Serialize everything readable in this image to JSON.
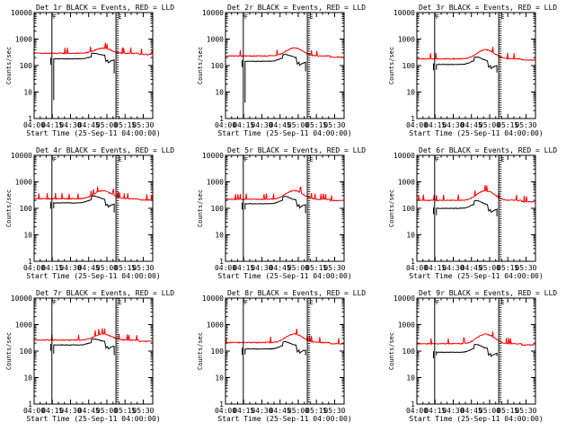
{
  "chart_data": [
    {
      "type": "line",
      "title": "Det 1r BLACK = Events, RED = LLD",
      "xlabel": "Start Time (25-Sep-11 04:00:00)",
      "ylabel": "Counts/sec",
      "yscale": "log",
      "ylim": [
        1,
        10000
      ],
      "xlim": [
        0,
        100
      ],
      "x_ticks": [
        "04:00",
        "04:15",
        "04:30",
        "04:45",
        "05:00",
        "05:15",
        "05:30"
      ],
      "y_ticks": [
        "1",
        "10",
        "100",
        "1000",
        "10000"
      ],
      "events_base": 180,
      "lld_base": 290,
      "bump_amp": 1.55,
      "drop_left": 5,
      "drop_right": 50,
      "vertical_lines": [
        {
          "x": 15,
          "style": "solid",
          "flag": "F"
        },
        {
          "x": 69,
          "style": "solid",
          "flag": ""
        },
        {
          "x": 70,
          "style": "dotted",
          "flag": "E"
        },
        {
          "x": 71,
          "style": "dotted",
          "flag": ""
        }
      ],
      "series": [
        {
          "name": "Events",
          "color": "#000000"
        },
        {
          "name": "LLD",
          "color": "#ff0000"
        }
      ]
    },
    {
      "type": "line",
      "title": "Det 2r BLACK = Events, RED = LLD",
      "xlabel": "Start Time (25-Sep-11 04:00:00)",
      "ylabel": "Counts/sec",
      "yscale": "log",
      "ylim": [
        1,
        10000
      ],
      "xlim": [
        0,
        100
      ],
      "x_ticks": [
        "04:00",
        "04:15",
        "04:30",
        "04:45",
        "05:00",
        "05:15",
        "05:30"
      ],
      "y_ticks": [
        "1",
        "10",
        "100",
        "1000",
        "10000"
      ],
      "events_base": 145,
      "lld_base": 230,
      "bump_amp": 2.0,
      "drop_left": 4,
      "drop_right": 60,
      "vertical_lines": [
        {
          "x": 15,
          "style": "solid",
          "flag": "F"
        },
        {
          "x": 69,
          "style": "solid",
          "flag": ""
        },
        {
          "x": 70,
          "style": "dotted",
          "flag": "E"
        },
        {
          "x": 71,
          "style": "dotted",
          "flag": ""
        }
      ],
      "series": [
        {
          "name": "Events",
          "color": "#000000"
        },
        {
          "name": "LLD",
          "color": "#ff0000"
        }
      ]
    },
    {
      "type": "line",
      "title": "Det 3r BLACK = Events, RED = LLD",
      "xlabel": "Start Time (25-Sep-11 04:00:00)",
      "ylabel": "Counts/sec",
      "yscale": "log",
      "ylim": [
        1,
        10000
      ],
      "xlim": [
        0,
        100
      ],
      "x_ticks": [
        "04:00",
        "04:15",
        "04:30",
        "04:45",
        "05:00",
        "05:15",
        "05:30"
      ],
      "y_ticks": [
        "1",
        "10",
        "100",
        "1000",
        "10000"
      ],
      "events_base": 110,
      "lld_base": 180,
      "bump_amp": 2.2,
      "drop_left": 70,
      "drop_right": 55,
      "vertical_lines": [
        {
          "x": 15,
          "style": "solid",
          "flag": "F"
        },
        {
          "x": 69,
          "style": "solid",
          "flag": ""
        },
        {
          "x": 70,
          "style": "dotted",
          "flag": "E"
        },
        {
          "x": 71,
          "style": "dotted",
          "flag": ""
        }
      ],
      "series": [
        {
          "name": "Events",
          "color": "#000000"
        },
        {
          "name": "LLD",
          "color": "#ff0000"
        }
      ]
    },
    {
      "type": "line",
      "title": "Det 4r BLACK = Events, RED = LLD",
      "xlabel": "Start Time (25-Sep-11 04:00:00)",
      "ylabel": "Counts/sec",
      "yscale": "log",
      "ylim": [
        1,
        10000
      ],
      "xlim": [
        0,
        100
      ],
      "x_ticks": [
        "04:00",
        "04:15",
        "04:30",
        "04:45",
        "05:00",
        "05:15",
        "05:30"
      ],
      "y_ticks": [
        "1",
        "10",
        "100",
        "1000",
        "10000"
      ],
      "events_base": 160,
      "lld_base": 230,
      "bump_amp": 2.0,
      "drop_left": 100,
      "drop_right": 70,
      "vertical_lines": [
        {
          "x": 15,
          "style": "solid",
          "flag": "F"
        },
        {
          "x": 69,
          "style": "solid",
          "flag": ""
        },
        {
          "x": 70,
          "style": "dotted",
          "flag": "E"
        },
        {
          "x": 71,
          "style": "dotted",
          "flag": ""
        }
      ],
      "series": [
        {
          "name": "Events",
          "color": "#000000"
        },
        {
          "name": "LLD",
          "color": "#ff0000"
        }
      ]
    },
    {
      "type": "line",
      "title": "Det 5r BLACK = Events, RED = LLD",
      "xlabel": "Start Time (25-Sep-11 04:00:00)",
      "ylabel": "Counts/sec",
      "yscale": "log",
      "ylim": [
        1,
        10000
      ],
      "xlim": [
        0,
        100
      ],
      "x_ticks": [
        "04:00",
        "04:15",
        "04:30",
        "04:45",
        "05:00",
        "05:15",
        "05:30"
      ],
      "y_ticks": [
        "1",
        "10",
        "100",
        "1000",
        "10000"
      ],
      "events_base": 150,
      "lld_base": 220,
      "bump_amp": 2.1,
      "drop_left": 90,
      "drop_right": 65,
      "vertical_lines": [
        {
          "x": 15,
          "style": "solid",
          "flag": "F"
        },
        {
          "x": 69,
          "style": "solid",
          "flag": ""
        },
        {
          "x": 70,
          "style": "dotted",
          "flag": "E"
        },
        {
          "x": 71,
          "style": "dotted",
          "flag": ""
        }
      ],
      "series": [
        {
          "name": "Events",
          "color": "#000000"
        },
        {
          "name": "LLD",
          "color": "#ff0000"
        }
      ]
    },
    {
      "type": "line",
      "title": "Det 6r BLACK = Events, RED = LLD",
      "xlabel": "Start Time (25-Sep-11 04:00:00)",
      "ylabel": "Counts/sec",
      "yscale": "log",
      "ylim": [
        1,
        10000
      ],
      "xlim": [
        0,
        100
      ],
      "x_ticks": [
        "04:00",
        "04:15",
        "04:30",
        "04:45",
        "05:00",
        "05:15",
        "05:30"
      ],
      "y_ticks": [
        "1",
        "10",
        "100",
        "1000",
        "10000"
      ],
      "events_base": 100,
      "lld_base": 200,
      "bump_amp": 2.3,
      "drop_left": 55,
      "drop_right": 50,
      "vertical_lines": [
        {
          "x": 15,
          "style": "solid",
          "flag": "F"
        },
        {
          "x": 69,
          "style": "solid",
          "flag": ""
        },
        {
          "x": 70,
          "style": "dotted",
          "flag": "E"
        },
        {
          "x": 71,
          "style": "dotted",
          "flag": ""
        }
      ],
      "series": [
        {
          "name": "Events",
          "color": "#000000"
        },
        {
          "name": "LLD",
          "color": "#ff0000"
        }
      ]
    },
    {
      "type": "line",
      "title": "Det 7r BLACK = Events, RED = LLD",
      "xlabel": "Start Time (25-Sep-11 04:00:00)",
      "ylabel": "Counts/sec",
      "yscale": "log",
      "ylim": [
        1,
        10000
      ],
      "xlim": [
        0,
        100
      ],
      "x_ticks": [
        "04:00",
        "04:15",
        "04:30",
        "04:45",
        "05:00",
        "05:15",
        "05:30"
      ],
      "y_ticks": [
        "1",
        "10",
        "100",
        "1000",
        "10000"
      ],
      "events_base": 170,
      "lld_base": 260,
      "bump_amp": 1.7,
      "drop_left": 80,
      "drop_right": 70,
      "vertical_lines": [
        {
          "x": 15,
          "style": "solid",
          "flag": "F"
        },
        {
          "x": 69,
          "style": "solid",
          "flag": ""
        },
        {
          "x": 70,
          "style": "dotted",
          "flag": "E"
        },
        {
          "x": 71,
          "style": "dotted",
          "flag": ""
        }
      ],
      "series": [
        {
          "name": "Events",
          "color": "#000000"
        },
        {
          "name": "LLD",
          "color": "#ff0000"
        }
      ]
    },
    {
      "type": "line",
      "title": "Det 8r BLACK = Events, RED = LLD",
      "xlabel": "Start Time (25-Sep-11 04:00:00)",
      "ylabel": "Counts/sec",
      "yscale": "log",
      "ylim": [
        1,
        10000
      ],
      "xlim": [
        0,
        100
      ],
      "x_ticks": [
        "04:00",
        "04:15",
        "04:30",
        "04:45",
        "05:00",
        "05:15",
        "05:30"
      ],
      "y_ticks": [
        "1",
        "10",
        "100",
        "1000",
        "10000"
      ],
      "events_base": 120,
      "lld_base": 210,
      "bump_amp": 2.1,
      "drop_left": 75,
      "drop_right": 70,
      "vertical_lines": [
        {
          "x": 15,
          "style": "solid",
          "flag": "F"
        },
        {
          "x": 69,
          "style": "solid",
          "flag": ""
        },
        {
          "x": 70,
          "style": "dotted",
          "flag": "E"
        },
        {
          "x": 71,
          "style": "dotted",
          "flag": ""
        }
      ],
      "series": [
        {
          "name": "Events",
          "color": "#000000"
        },
        {
          "name": "LLD",
          "color": "#ff0000"
        }
      ]
    },
    {
      "type": "line",
      "title": "Det 9r BLACK = Events, RED = LLD",
      "xlabel": "Start Time (25-Sep-11 04:00:00)",
      "ylabel": "Counts/sec",
      "yscale": "log",
      "ylim": [
        1,
        10000
      ],
      "xlim": [
        0,
        100
      ],
      "x_ticks": [
        "04:00",
        "04:15",
        "04:30",
        "04:45",
        "05:00",
        "05:15",
        "05:30"
      ],
      "y_ticks": [
        "1",
        "10",
        "100",
        "1000",
        "10000"
      ],
      "events_base": 90,
      "lld_base": 190,
      "bump_amp": 2.3,
      "drop_left": 70,
      "drop_right": 65,
      "vertical_lines": [
        {
          "x": 15,
          "style": "solid",
          "flag": "F"
        },
        {
          "x": 69,
          "style": "solid",
          "flag": ""
        },
        {
          "x": 70,
          "style": "dotted",
          "flag": "E"
        },
        {
          "x": 71,
          "style": "dotted",
          "flag": ""
        }
      ],
      "series": [
        {
          "name": "Events",
          "color": "#000000"
        },
        {
          "name": "LLD",
          "color": "#ff0000"
        }
      ]
    }
  ]
}
